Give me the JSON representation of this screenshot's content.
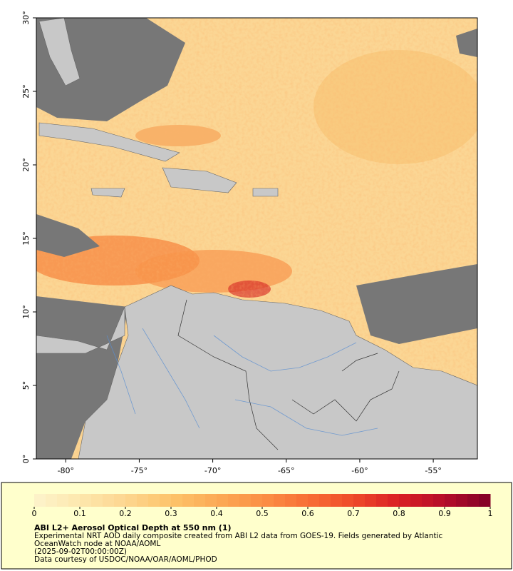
{
  "map": {
    "xlim": [
      -82,
      -52
    ],
    "ylim": [
      0,
      30
    ],
    "xticks": [
      {
        "value": -80,
        "label": "-80°"
      },
      {
        "value": -75,
        "label": "-75°"
      },
      {
        "value": -70,
        "label": "-70°"
      },
      {
        "value": -65,
        "label": "-65°"
      },
      {
        "value": -60,
        "label": "-60°"
      },
      {
        "value": -55,
        "label": "-55°"
      }
    ],
    "yticks": [
      {
        "value": 0,
        "label": "0°"
      },
      {
        "value": 5,
        "label": "5°"
      },
      {
        "value": 10,
        "label": "10°"
      },
      {
        "value": 15,
        "label": "15°"
      },
      {
        "value": 20,
        "label": "20°"
      },
      {
        "value": 25,
        "label": "25°"
      },
      {
        "value": 30,
        "label": "30°"
      }
    ]
  },
  "colorbar": {
    "lim": [
      0,
      1
    ],
    "ticks": [
      0,
      0.1,
      0.2,
      0.3,
      0.4,
      0.5,
      0.6,
      0.7,
      0.8,
      0.9,
      1
    ],
    "colors": [
      "#fdf3cc",
      "#fde7ad",
      "#fdd690",
      "#fdc46a",
      "#fcaa55",
      "#fb9045",
      "#f86e35",
      "#ef4a29",
      "#d91f24",
      "#b50d2a",
      "#800026"
    ]
  },
  "title": "ABI L2+ Aerosol Optical Depth at 550 nm (1)",
  "caption": [
    "Experimental NRT AOD daily composite created from ABI L2 data from GOES-19. Fields generated by Atlantic",
    "OceanWatch node at NOAA/AOML",
    "(2025-09-02T00:00:00Z)",
    "Data courtesy of USDOC/NOAA/OAR/AOML/PHOD"
  ]
}
